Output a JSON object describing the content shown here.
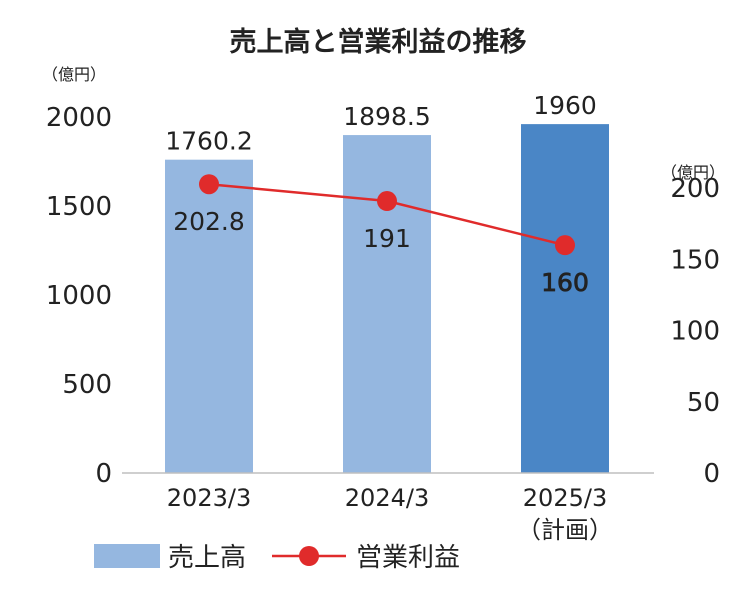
{
  "chart_data": {
    "type": "bar",
    "title": "売上高と営業利益の推移",
    "categories": [
      "2023/3",
      "2024/3",
      "2025/3"
    ],
    "category_sublabels": [
      "",
      "",
      "（計画）"
    ],
    "series": [
      {
        "name": "売上高",
        "type": "bar",
        "axis": "left",
        "values": [
          1760.2,
          1898.5,
          1960
        ],
        "labels": [
          "1760.2",
          "1898.5",
          "1960"
        ],
        "colors": [
          "#95b7e0",
          "#95b7e0",
          "#4a86c6"
        ]
      },
      {
        "name": "営業利益",
        "type": "line",
        "axis": "right",
        "values": [
          202.8,
          191,
          160
        ],
        "labels": [
          "202.8",
          "191",
          "160"
        ],
        "color": "#e02b2b"
      }
    ],
    "y_left": {
      "unit": "（億円）",
      "ylim": [
        0,
        2000
      ],
      "ticks": [
        "0",
        "500",
        "1000",
        "1500",
        "2000"
      ],
      "tick_values": [
        0,
        500,
        1000,
        1500,
        2000
      ]
    },
    "y_right": {
      "unit": "（億円）",
      "ylim": [
        0,
        250
      ],
      "ticks": [
        "0",
        "50",
        "100",
        "150",
        "200"
      ],
      "tick_values": [
        0,
        50,
        100,
        150,
        200
      ]
    },
    "grid": false,
    "legend_position": "bottom-left"
  }
}
